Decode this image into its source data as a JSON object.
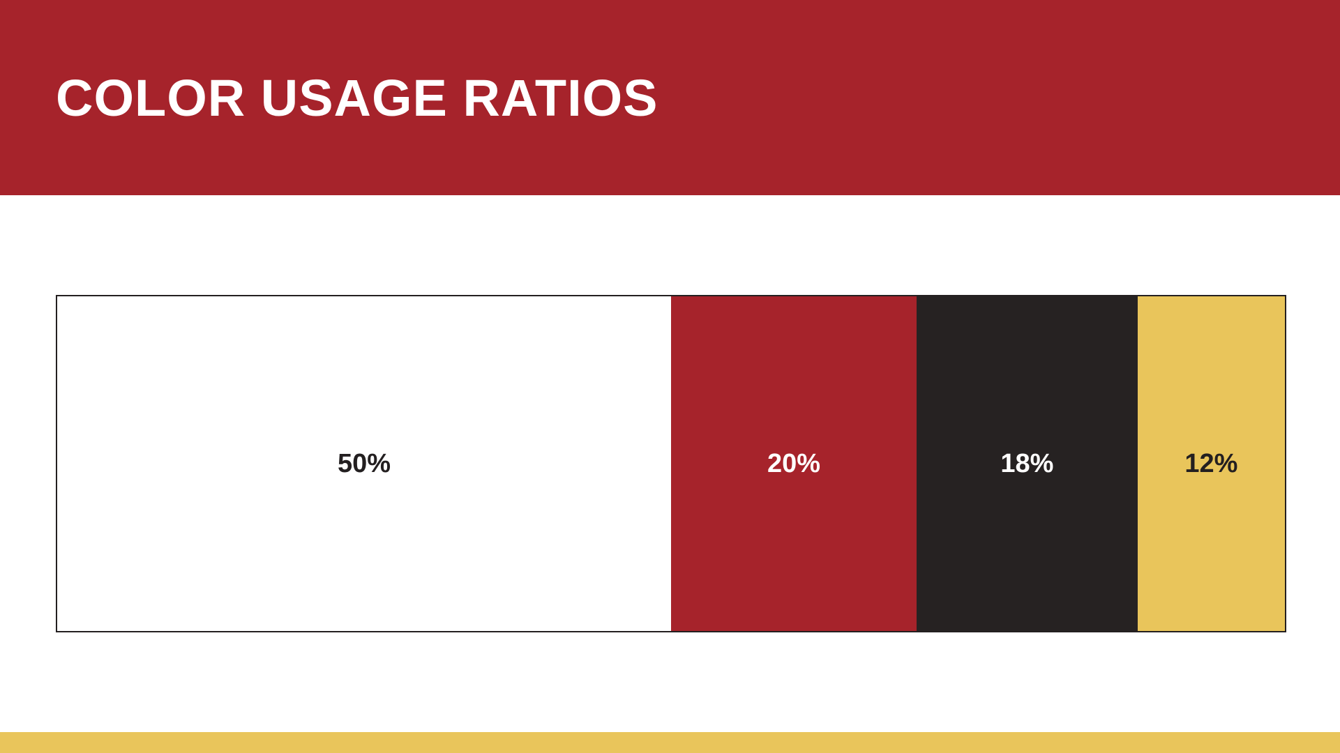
{
  "header": {
    "title": "COLOR USAGE RATIOS",
    "background": "#A6232B",
    "text_color": "#FFFFFF"
  },
  "chart_data": {
    "type": "bar",
    "title": "COLOR USAGE RATIOS",
    "orientation": "horizontal-stacked",
    "categories": [
      "White",
      "Red",
      "Black",
      "Gold"
    ],
    "values": [
      50,
      20,
      18,
      12
    ],
    "unit": "%",
    "segments": [
      {
        "label": "50%",
        "value": 50,
        "color": "#FFFFFF",
        "text_color": "#231F20"
      },
      {
        "label": "20%",
        "value": 20,
        "color": "#A6232B",
        "text_color": "#FFFFFF"
      },
      {
        "label": "18%",
        "value": 18,
        "color": "#262222",
        "text_color": "#FFFFFF"
      },
      {
        "label": "12%",
        "value": 12,
        "color": "#E9C55B",
        "text_color": "#231F20"
      }
    ],
    "legend_position": "none",
    "grid": false,
    "border_color": "#231F20"
  },
  "footer": {
    "accent_color": "#E9C55B"
  }
}
